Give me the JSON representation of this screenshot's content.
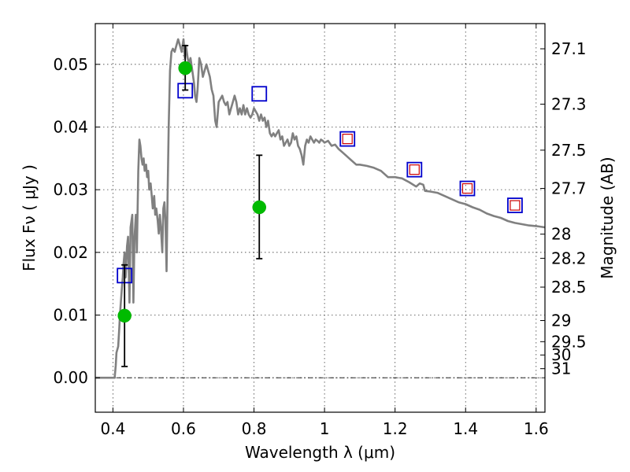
{
  "chart_data": {
    "type": "scatter",
    "xlabel": "Wavelength  λ (μm)",
    "ylabel": "Flux  Fν  ( μJy )",
    "ylabel_right": "Magnitude (AB)",
    "xlim": [
      0.35,
      1.625
    ],
    "ylim": [
      -0.0055,
      0.0565
    ],
    "x_ticks": [
      0.4,
      0.6,
      0.8,
      1.0,
      1.2,
      1.4,
      1.6
    ],
    "x_tick_labels": [
      "0.4",
      "0.6",
      "0.8",
      "1",
      "1.2",
      "1.4",
      "1.6"
    ],
    "y_ticks": [
      0.0,
      0.01,
      0.02,
      0.03,
      0.04,
      0.05
    ],
    "y_tick_labels": [
      "0.00",
      "0.01",
      "0.02",
      "0.03",
      "0.04",
      "0.05"
    ],
    "right_axis_ticks": [
      "27.1",
      "27.3",
      "27.5",
      "27.7",
      "28",
      "28.2",
      "28.5",
      "29",
      "29.5",
      "30",
      "31"
    ],
    "grid": true,
    "colors": {
      "model": "#808080",
      "observed": "#00bb00",
      "model_box_outer": "#0000cc",
      "model_box_inner": "#cc0000",
      "errorbar": "#000000"
    },
    "series": [
      {
        "kind": "line",
        "points": [
          [
            0.35,
            0.0
          ],
          [
            0.405,
            0.0
          ],
          [
            0.408,
            0.002
          ],
          [
            0.41,
            0.004
          ],
          [
            0.415,
            0.005
          ],
          [
            0.418,
            0.008
          ],
          [
            0.42,
            0.01
          ],
          [
            0.425,
            0.014
          ],
          [
            0.428,
            0.016
          ],
          [
            0.43,
            0.018
          ],
          [
            0.433,
            0.02
          ],
          [
            0.436,
            0.016
          ],
          [
            0.44,
            0.021
          ],
          [
            0.443,
            0.0225
          ],
          [
            0.447,
            0.012
          ],
          [
            0.45,
            0.024
          ],
          [
            0.455,
            0.026
          ],
          [
            0.458,
            0.012
          ],
          [
            0.461,
            0.022
          ],
          [
            0.465,
            0.026
          ],
          [
            0.468,
            0.02
          ],
          [
            0.472,
            0.033
          ],
          [
            0.475,
            0.038
          ],
          [
            0.478,
            0.037
          ],
          [
            0.481,
            0.035
          ],
          [
            0.484,
            0.034
          ],
          [
            0.487,
            0.035
          ],
          [
            0.49,
            0.033
          ],
          [
            0.494,
            0.034
          ],
          [
            0.497,
            0.032
          ],
          [
            0.5,
            0.033
          ],
          [
            0.503,
            0.03
          ],
          [
            0.507,
            0.031
          ],
          [
            0.51,
            0.029
          ],
          [
            0.513,
            0.027
          ],
          [
            0.517,
            0.029
          ],
          [
            0.52,
            0.026
          ],
          [
            0.523,
            0.027
          ],
          [
            0.527,
            0.025
          ],
          [
            0.53,
            0.023
          ],
          [
            0.533,
            0.026
          ],
          [
            0.536,
            0.024
          ],
          [
            0.54,
            0.02
          ],
          [
            0.543,
            0.027
          ],
          [
            0.546,
            0.028
          ],
          [
            0.549,
            0.025
          ],
          [
            0.552,
            0.017
          ],
          [
            0.555,
            0.029
          ],
          [
            0.558,
            0.04
          ],
          [
            0.562,
            0.049
          ],
          [
            0.566,
            0.052
          ],
          [
            0.57,
            0.0525
          ],
          [
            0.575,
            0.052
          ],
          [
            0.58,
            0.053
          ],
          [
            0.585,
            0.054
          ],
          [
            0.59,
            0.053
          ],
          [
            0.595,
            0.052
          ],
          [
            0.6,
            0.054
          ],
          [
            0.604,
            0.051
          ],
          [
            0.607,
            0.053
          ],
          [
            0.612,
            0.051
          ],
          [
            0.616,
            0.05
          ],
          [
            0.62,
            0.051
          ],
          [
            0.625,
            0.049
          ],
          [
            0.63,
            0.047
          ],
          [
            0.633,
            0.045
          ],
          [
            0.637,
            0.044
          ],
          [
            0.64,
            0.046
          ],
          [
            0.645,
            0.051
          ],
          [
            0.65,
            0.05
          ],
          [
            0.655,
            0.048
          ],
          [
            0.66,
            0.049
          ],
          [
            0.665,
            0.05
          ],
          [
            0.67,
            0.049
          ],
          [
            0.675,
            0.048
          ],
          [
            0.68,
            0.046
          ],
          [
            0.685,
            0.045
          ],
          [
            0.69,
            0.041
          ],
          [
            0.694,
            0.04
          ],
          [
            0.7,
            0.044
          ],
          [
            0.705,
            0.0445
          ],
          [
            0.71,
            0.045
          ],
          [
            0.715,
            0.044
          ],
          [
            0.72,
            0.0435
          ],
          [
            0.725,
            0.044
          ],
          [
            0.73,
            0.042
          ],
          [
            0.735,
            0.043
          ],
          [
            0.74,
            0.044
          ],
          [
            0.745,
            0.045
          ],
          [
            0.75,
            0.044
          ],
          [
            0.755,
            0.042
          ],
          [
            0.76,
            0.043
          ],
          [
            0.765,
            0.042
          ],
          [
            0.77,
            0.0435
          ],
          [
            0.775,
            0.042
          ],
          [
            0.78,
            0.043
          ],
          [
            0.785,
            0.042
          ],
          [
            0.79,
            0.0415
          ],
          [
            0.795,
            0.042
          ],
          [
            0.8,
            0.043
          ],
          [
            0.81,
            0.042
          ],
          [
            0.815,
            0.041
          ],
          [
            0.82,
            0.042
          ],
          [
            0.825,
            0.041
          ],
          [
            0.83,
            0.0415
          ],
          [
            0.835,
            0.04
          ],
          [
            0.84,
            0.041
          ],
          [
            0.845,
            0.039
          ],
          [
            0.85,
            0.0385
          ],
          [
            0.855,
            0.039
          ],
          [
            0.86,
            0.0385
          ],
          [
            0.865,
            0.039
          ],
          [
            0.87,
            0.0395
          ],
          [
            0.875,
            0.038
          ],
          [
            0.88,
            0.0385
          ],
          [
            0.885,
            0.037
          ],
          [
            0.89,
            0.0375
          ],
          [
            0.895,
            0.038
          ],
          [
            0.9,
            0.037
          ],
          [
            0.905,
            0.0375
          ],
          [
            0.91,
            0.039
          ],
          [
            0.915,
            0.038
          ],
          [
            0.92,
            0.0385
          ],
          [
            0.925,
            0.037
          ],
          [
            0.93,
            0.0365
          ],
          [
            0.935,
            0.0355
          ],
          [
            0.94,
            0.034
          ],
          [
            0.945,
            0.037
          ],
          [
            0.95,
            0.038
          ],
          [
            0.955,
            0.0375
          ],
          [
            0.96,
            0.0385
          ],
          [
            0.965,
            0.038
          ],
          [
            0.97,
            0.0375
          ],
          [
            0.975,
            0.038
          ],
          [
            0.98,
            0.0378
          ],
          [
            0.985,
            0.0375
          ],
          [
            0.99,
            0.038
          ],
          [
            0.995,
            0.0378
          ],
          [
            1.0,
            0.0375
          ],
          [
            1.01,
            0.0378
          ],
          [
            1.02,
            0.037
          ],
          [
            1.03,
            0.0372
          ],
          [
            1.04,
            0.0365
          ],
          [
            1.05,
            0.036
          ],
          [
            1.06,
            0.0355
          ],
          [
            1.07,
            0.035
          ],
          [
            1.08,
            0.0345
          ],
          [
            1.09,
            0.034
          ],
          [
            1.1,
            0.034
          ],
          [
            1.12,
            0.0338
          ],
          [
            1.14,
            0.0335
          ],
          [
            1.16,
            0.033
          ],
          [
            1.18,
            0.032
          ],
          [
            1.2,
            0.032
          ],
          [
            1.22,
            0.0318
          ],
          [
            1.24,
            0.0312
          ],
          [
            1.26,
            0.0305
          ],
          [
            1.27,
            0.031
          ],
          [
            1.28,
            0.0308
          ],
          [
            1.285,
            0.0298
          ],
          [
            1.3,
            0.0297
          ],
          [
            1.32,
            0.0295
          ],
          [
            1.34,
            0.029
          ],
          [
            1.36,
            0.0285
          ],
          [
            1.38,
            0.028
          ],
          [
            1.4,
            0.0277
          ],
          [
            1.42,
            0.0272
          ],
          [
            1.44,
            0.0268
          ],
          [
            1.46,
            0.0262
          ],
          [
            1.48,
            0.0258
          ],
          [
            1.5,
            0.0255
          ],
          [
            1.52,
            0.025
          ],
          [
            1.54,
            0.0247
          ],
          [
            1.56,
            0.0245
          ],
          [
            1.58,
            0.0243
          ],
          [
            1.6,
            0.0242
          ],
          [
            1.625,
            0.024
          ]
        ]
      },
      {
        "kind": "model_boxes",
        "points": [
          [
            0.433,
            0.0163
          ],
          [
            0.605,
            0.0458
          ],
          [
            0.815,
            0.0453
          ]
        ]
      },
      {
        "kind": "model_boxes_double",
        "points": [
          [
            1.065,
            0.0381
          ],
          [
            1.255,
            0.0332
          ],
          [
            1.405,
            0.0302
          ],
          [
            1.54,
            0.0275
          ]
        ]
      },
      {
        "kind": "observed",
        "points": [
          {
            "x": 0.433,
            "y": 0.0099,
            "ylow": 0.0018,
            "yhigh": 0.018
          },
          {
            "x": 0.605,
            "y": 0.0494,
            "ylow": 0.0459,
            "yhigh": 0.053
          },
          {
            "x": 0.815,
            "y": 0.0272,
            "ylow": 0.019,
            "yhigh": 0.0355
          }
        ]
      }
    ]
  }
}
